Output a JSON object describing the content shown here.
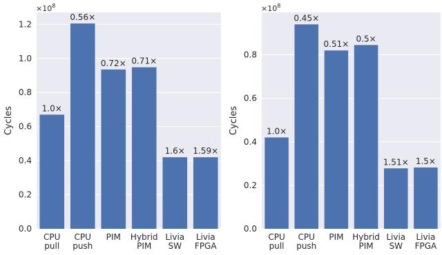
{
  "chart_data": [
    {
      "type": "bar",
      "categories": [
        [
          "CPU",
          "pull"
        ],
        [
          "CPU",
          "push"
        ],
        [
          "PIM"
        ],
        [
          "Hybrid",
          "PIM"
        ],
        [
          "Livia",
          "SW"
        ],
        [
          "Livia",
          "FPGA"
        ]
      ],
      "values": [
        67000000.0,
        120500000.0,
        93500000.0,
        94800000.0,
        42000000.0,
        42000000.0
      ],
      "data_labels": [
        "1.0×",
        "0.56×",
        "0.72×",
        "0.71×",
        "1.6×",
        "1.59×"
      ],
      "ylabel": "Cycles",
      "y_multiplier": "×10^8",
      "yticks": [
        0,
        20000000.0,
        40000000.0,
        60000000.0,
        80000000.0,
        100000000.0,
        120000000.0
      ],
      "ytick_labels": [
        "0.0",
        "0.2",
        "0.4",
        "0.6",
        "0.8",
        "1.0",
        "1.2"
      ],
      "ylim": [
        0,
        127000000.0
      ],
      "grid": true,
      "bar_color": "#4c72b0",
      "background": "#eaeaf2"
    },
    {
      "type": "bar",
      "categories": [
        [
          "CPU",
          "pull"
        ],
        [
          "CPU",
          "push"
        ],
        [
          "PIM"
        ],
        [
          "Hybrid",
          "PIM"
        ],
        [
          "Livia",
          "SW"
        ],
        [
          "Livia",
          "FPGA"
        ]
      ],
      "values": [
        42000000.0,
        94000000.0,
        82000000.0,
        84500000.0,
        27800000.0,
        28200000.0
      ],
      "data_labels": [
        "1.0×",
        "0.45×",
        "0.51×",
        "0.5×",
        "1.51×",
        "1.5×"
      ],
      "ylabel": "Cycles",
      "y_multiplier": "×10^8",
      "yticks": [
        0,
        20000000.0,
        40000000.0,
        60000000.0,
        80000000.0
      ],
      "ytick_labels": [
        "0.0",
        "0.2",
        "0.4",
        "0.6",
        "0.8"
      ],
      "ylim": [
        0,
        99500000.0
      ],
      "grid": true,
      "bar_color": "#4c72b0",
      "background": "#eaeaf2"
    }
  ]
}
